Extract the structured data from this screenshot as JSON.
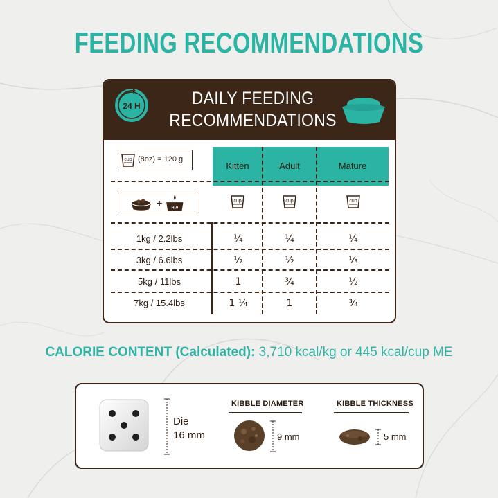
{
  "headline": "FEEDING RECOMMENDATIONS",
  "colors": {
    "teal": "#2bb3a4",
    "brown": "#3b2618",
    "background": "#eeeeec"
  },
  "card": {
    "clock_label": "24 H",
    "title_line1": "DAILY FEEDING",
    "title_line2": "RECOMMENDATIONS",
    "cup_icon_label": "cup",
    "cup_size": "(8oz) = 120 g",
    "water_label": "H₂0",
    "columns": [
      "Kitten",
      "Adult",
      "Mature"
    ],
    "rows": [
      {
        "weight": "1kg / 2.2lbs",
        "values": [
          "¹⁄₄",
          "¹⁄₄",
          "¹⁄₄"
        ]
      },
      {
        "weight": "3kg / 6.6lbs",
        "values": [
          "¹⁄₂",
          "¹⁄₂",
          "¹⁄₃"
        ]
      },
      {
        "weight": "5kg / 11lbs",
        "values": [
          "1",
          "³⁄₄",
          "¹⁄₂"
        ]
      },
      {
        "weight": "7kg / 15.4lbs",
        "values": [
          "1 ¹⁄₄",
          "1",
          "³⁄₄"
        ]
      }
    ]
  },
  "calorie": {
    "label": "CALORIE CONTENT (Calculated):",
    "value": "3,710 kcal/kg or 445 kcal/cup ME"
  },
  "kibble": {
    "die_label_line1": "Die",
    "die_label_line2": "16 mm",
    "diameter_title": "KIBBLE DIAMETER",
    "diameter_value": "9 mm",
    "thickness_title": "KIBBLE THICKNESS",
    "thickness_value": "5 mm"
  }
}
